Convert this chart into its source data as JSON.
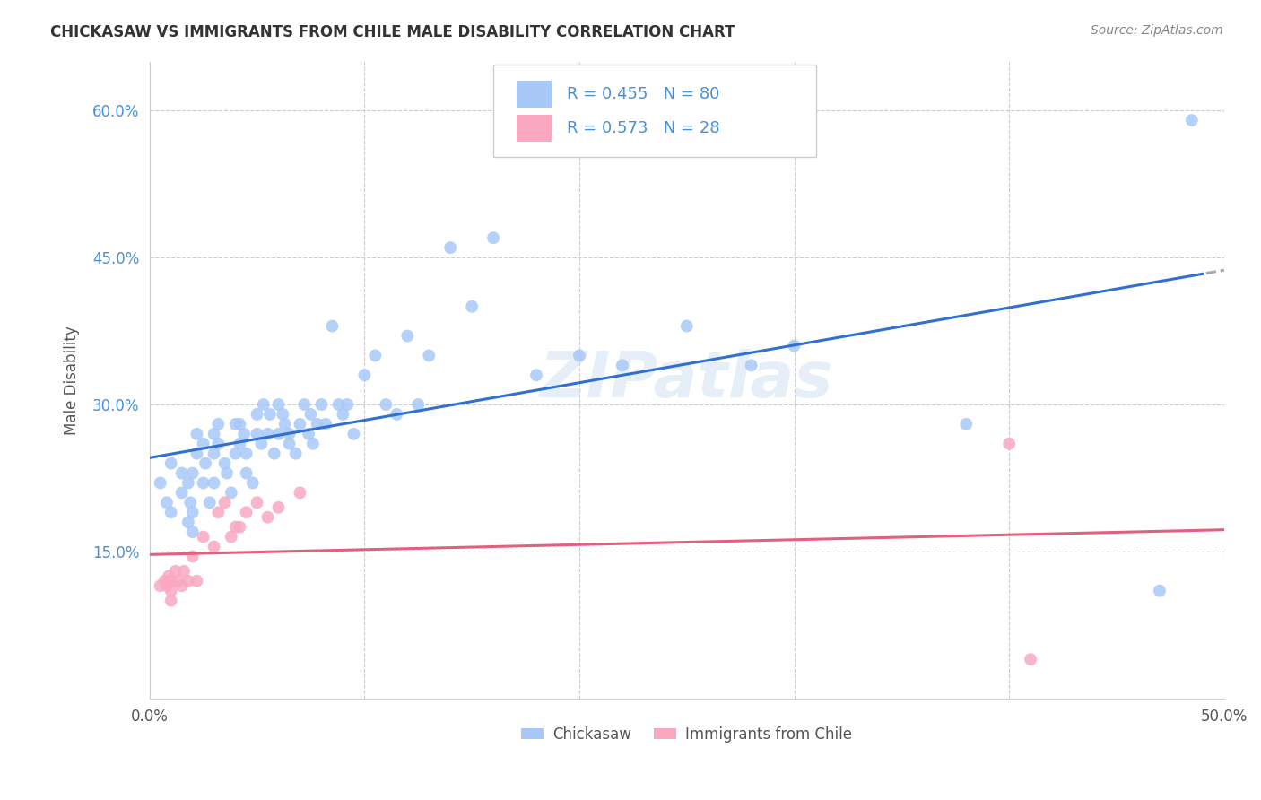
{
  "title": "CHICKASAW VS IMMIGRANTS FROM CHILE MALE DISABILITY CORRELATION CHART",
  "source": "Source: ZipAtlas.com",
  "ylabel": "Male Disability",
  "x_min": 0.0,
  "x_max": 0.5,
  "y_min": 0.0,
  "y_max": 0.65,
  "blue_R": 0.455,
  "blue_N": 80,
  "pink_R": 0.573,
  "pink_N": 28,
  "blue_color": "#A8C8F8",
  "pink_color": "#F9A8C0",
  "blue_line_color": "#3070D0",
  "pink_line_color": "#E06080",
  "dashed_line_color": "#AAAAAA",
  "text_blue": "#4A90D9",
  "watermark": "ZIPatlas",
  "blue_scatter_x": [
    0.005,
    0.008,
    0.01,
    0.01,
    0.015,
    0.015,
    0.018,
    0.018,
    0.019,
    0.02,
    0.02,
    0.02,
    0.022,
    0.022,
    0.025,
    0.025,
    0.026,
    0.028,
    0.03,
    0.03,
    0.03,
    0.032,
    0.032,
    0.035,
    0.036,
    0.038,
    0.04,
    0.04,
    0.042,
    0.042,
    0.044,
    0.045,
    0.045,
    0.048,
    0.05,
    0.05,
    0.052,
    0.053,
    0.055,
    0.056,
    0.058,
    0.06,
    0.06,
    0.062,
    0.063,
    0.065,
    0.065,
    0.068,
    0.07,
    0.072,
    0.074,
    0.075,
    0.076,
    0.078,
    0.08,
    0.082,
    0.085,
    0.088,
    0.09,
    0.092,
    0.095,
    0.1,
    0.105,
    0.11,
    0.115,
    0.12,
    0.125,
    0.13,
    0.14,
    0.15,
    0.16,
    0.18,
    0.2,
    0.22,
    0.25,
    0.28,
    0.3,
    0.38,
    0.47,
    0.485
  ],
  "blue_scatter_y": [
    0.22,
    0.2,
    0.24,
    0.19,
    0.23,
    0.21,
    0.22,
    0.18,
    0.2,
    0.23,
    0.17,
    0.19,
    0.27,
    0.25,
    0.26,
    0.22,
    0.24,
    0.2,
    0.27,
    0.25,
    0.22,
    0.28,
    0.26,
    0.24,
    0.23,
    0.21,
    0.28,
    0.25,
    0.28,
    0.26,
    0.27,
    0.25,
    0.23,
    0.22,
    0.29,
    0.27,
    0.26,
    0.3,
    0.27,
    0.29,
    0.25,
    0.3,
    0.27,
    0.29,
    0.28,
    0.26,
    0.27,
    0.25,
    0.28,
    0.3,
    0.27,
    0.29,
    0.26,
    0.28,
    0.3,
    0.28,
    0.38,
    0.3,
    0.29,
    0.3,
    0.27,
    0.33,
    0.35,
    0.3,
    0.29,
    0.37,
    0.3,
    0.35,
    0.46,
    0.4,
    0.47,
    0.33,
    0.35,
    0.34,
    0.38,
    0.34,
    0.36,
    0.28,
    0.11,
    0.59
  ],
  "pink_scatter_x": [
    0.005,
    0.007,
    0.008,
    0.009,
    0.01,
    0.01,
    0.01,
    0.012,
    0.013,
    0.015,
    0.016,
    0.018,
    0.02,
    0.022,
    0.025,
    0.03,
    0.032,
    0.035,
    0.038,
    0.04,
    0.042,
    0.045,
    0.05,
    0.055,
    0.06,
    0.07,
    0.4,
    0.41
  ],
  "pink_scatter_y": [
    0.115,
    0.12,
    0.115,
    0.125,
    0.1,
    0.11,
    0.12,
    0.13,
    0.12,
    0.115,
    0.13,
    0.12,
    0.145,
    0.12,
    0.165,
    0.155,
    0.19,
    0.2,
    0.165,
    0.175,
    0.175,
    0.19,
    0.2,
    0.185,
    0.195,
    0.21,
    0.26,
    0.04
  ]
}
